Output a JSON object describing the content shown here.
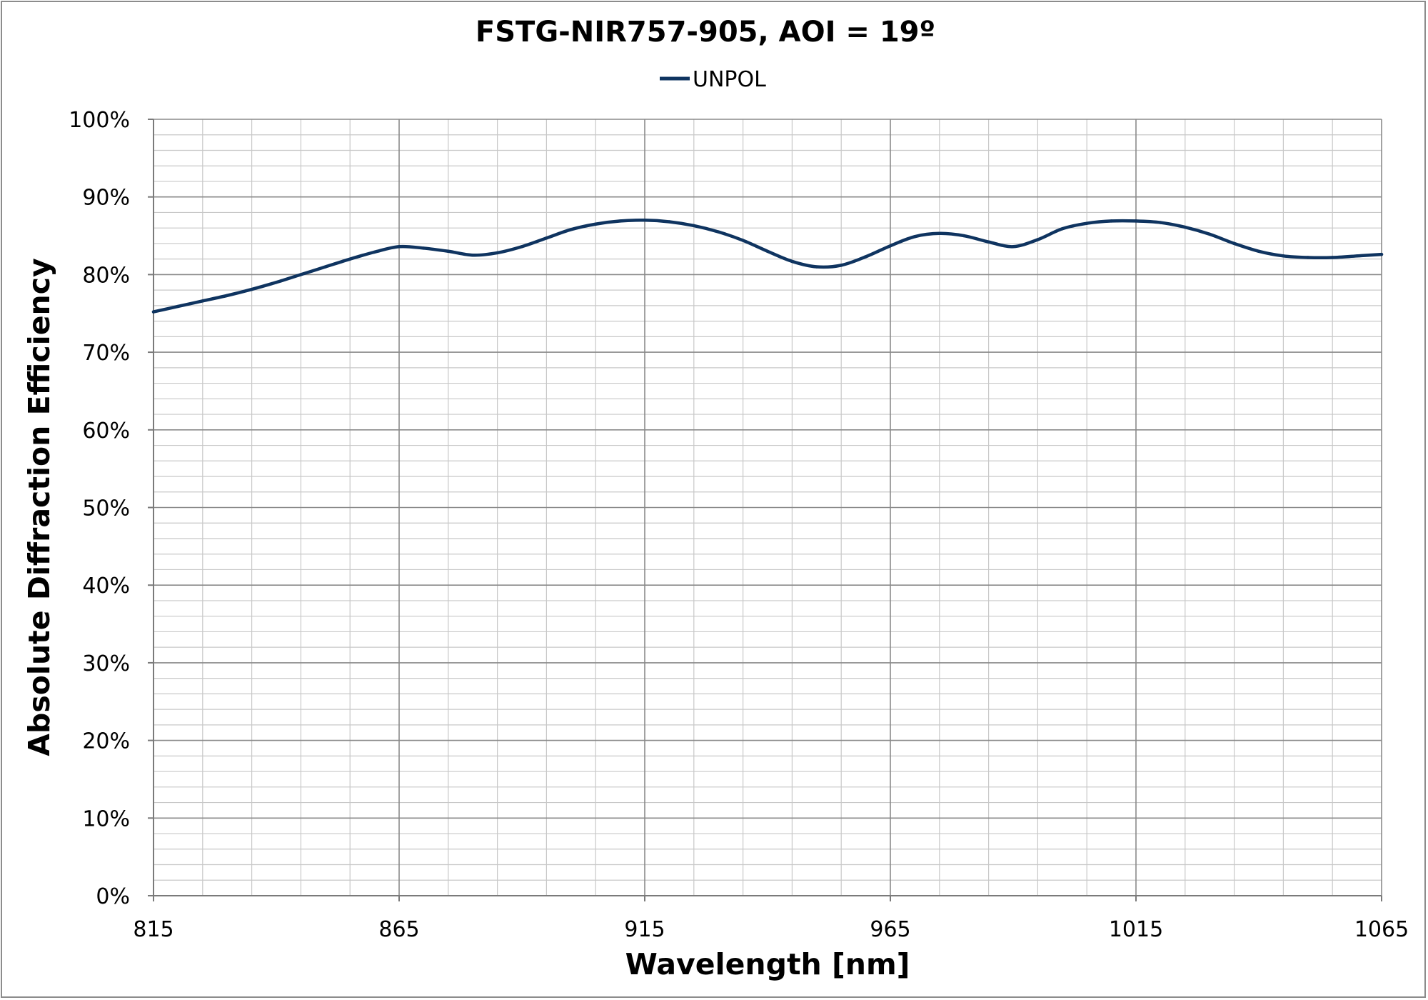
{
  "chart_data": {
    "type": "line",
    "title": "FSTG-NIR757-905, AOI = 19º",
    "xlabel": "Wavelength [nm]",
    "ylabel": "Absolute Diffraction Efficiency",
    "xlim": [
      815,
      1065
    ],
    "ylim": [
      0,
      100
    ],
    "x_ticks": [
      815,
      865,
      915,
      965,
      1015,
      1065
    ],
    "x_tick_labels": [
      "815",
      "865",
      "915",
      "965",
      "1015",
      "1065"
    ],
    "y_ticks": [
      0,
      10,
      20,
      30,
      40,
      50,
      60,
      70,
      80,
      90,
      100
    ],
    "y_tick_labels": [
      "0%",
      "10%",
      "20%",
      "30%",
      "40%",
      "50%",
      "60%",
      "70%",
      "80%",
      "90%",
      "100%"
    ],
    "x_minor_step": 10,
    "y_minor_step": 2,
    "grid": true,
    "legend_position": "top-center",
    "series": [
      {
        "name": "UNPOL",
        "color": "#0f3460",
        "x": [
          815,
          820,
          825,
          830,
          835,
          840,
          845,
          850,
          855,
          860,
          865,
          870,
          875,
          880,
          885,
          890,
          895,
          900,
          905,
          910,
          915,
          920,
          925,
          930,
          935,
          940,
          945,
          950,
          955,
          960,
          965,
          970,
          975,
          980,
          985,
          990,
          995,
          1000,
          1005,
          1010,
          1015,
          1020,
          1025,
          1030,
          1035,
          1040,
          1045,
          1050,
          1055,
          1060,
          1065
        ],
        "values": [
          75.2,
          75.9,
          76.6,
          77.3,
          78.1,
          79.0,
          80.0,
          81.0,
          82.0,
          82.9,
          83.6,
          83.4,
          83.0,
          82.5,
          82.8,
          83.6,
          84.7,
          85.8,
          86.5,
          86.9,
          87.0,
          86.8,
          86.3,
          85.5,
          84.4,
          83.0,
          81.7,
          81.0,
          81.2,
          82.3,
          83.7,
          84.9,
          85.3,
          85.0,
          84.2,
          83.6,
          84.5,
          85.9,
          86.6,
          86.9,
          86.9,
          86.7,
          86.1,
          85.2,
          84.0,
          83.0,
          82.4,
          82.2,
          82.2,
          82.4,
          82.6
        ]
      }
    ]
  }
}
